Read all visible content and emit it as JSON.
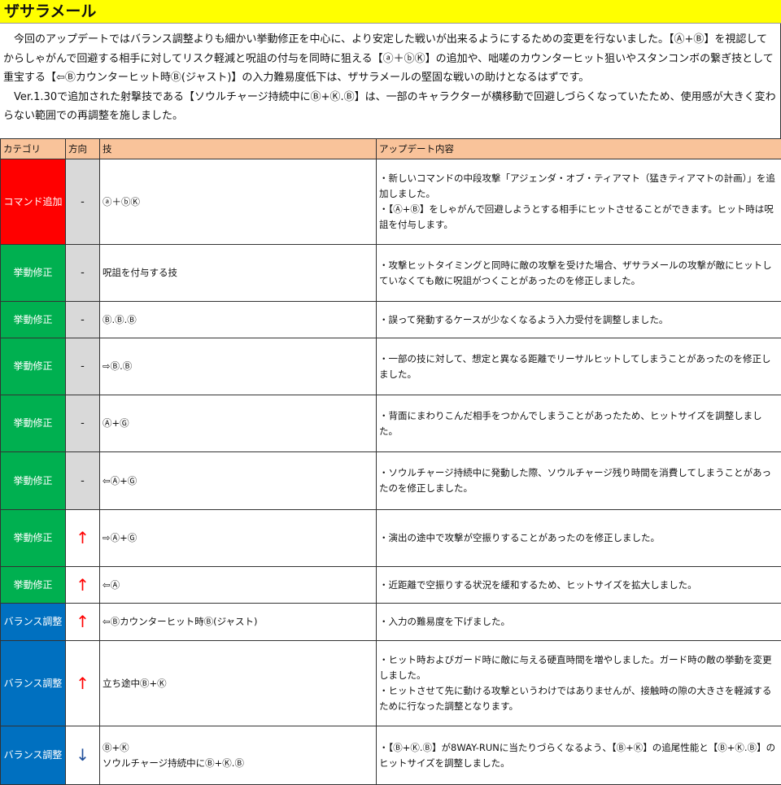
{
  "title": "ザサラメール",
  "intro": [
    "今回のアップデートではバランス調整よりも細かい挙動修正を中心に、より安定した戦いが出来るようにするための変更を行ないました。【Ⓐ+Ⓑ】を視認してからしゃがんで回避する相手に対してリスク軽減と呪詛の付与を同時に狙える【ⓐ＋ⓑⓀ】の追加や、咄嗟のカウンターヒット狙いやスタンコンボの繋ぎ技として重宝する【⇦Ⓑカウンターヒット時Ⓑ(ジャスト)】の入力難易度低下は、ザサラメールの堅固な戦いの助けとなるはずです。",
    "Ver.1.30で追加された射撃技である【ソウルチャージ持続中にⒷ+Ⓚ.Ⓑ】は、一部のキャラクターが横移動で回避しづらくなっていたため、使用感が大きく変わらない範囲での再調整を施しました。"
  ],
  "table": {
    "headers": [
      "カテゴリ",
      "方向",
      "技",
      "アップデート内容"
    ],
    "rows": [
      {
        "category": "コマンド追加",
        "color": "#ff0000",
        "direction": "-",
        "move": [
          "ⓐ＋ⓑⓀ"
        ],
        "details": [
          "・新しいコマンドの中段攻撃「アジェンダ・オブ・ティアマト（猛きティアマトの計画）」を追加しました。",
          "・【Ⓐ+Ⓑ】をしゃがんで回避しようとする相手にヒットさせることができます。ヒット時は呪詛を付与します。"
        ]
      },
      {
        "category": "挙動修正",
        "color": "#00b050",
        "direction": "-",
        "move": [
          "呪詛を付与する技"
        ],
        "details": [
          "・攻撃ヒットタイミングと同時に敵の攻撃を受けた場合、ザサラメールの攻撃が敵にヒットしていなくても敵に呪詛がつくことがあったのを修正しました。"
        ]
      },
      {
        "category": "挙動修正",
        "color": "#00b050",
        "direction": "-",
        "move": [
          "Ⓑ.Ⓑ.Ⓑ"
        ],
        "details": [
          "・誤って発動するケースが少なくなるよう入力受付を調整しました。"
        ]
      },
      {
        "category": "挙動修正",
        "color": "#00b050",
        "direction": "-",
        "move": [
          "⇨Ⓑ.Ⓑ"
        ],
        "details": [
          "・一部の技に対して、想定と異なる距離でリーサルヒットしてしまうことがあったのを修正しました。"
        ]
      },
      {
        "category": "挙動修正",
        "color": "#00b050",
        "direction": "-",
        "move": [
          "Ⓐ+Ⓖ"
        ],
        "details": [
          "・背面にまわりこんだ相手をつかんでしまうことがあったため、ヒットサイズを調整しました。"
        ]
      },
      {
        "category": "挙動修正",
        "color": "#00b050",
        "direction": "-",
        "move": [
          "⇦Ⓐ+Ⓖ"
        ],
        "details": [
          "・ソウルチャージ持続中に発動した際、ソウルチャージ残り時間を消費してしまうことがあったのを修正しました。"
        ]
      },
      {
        "category": "挙動修正",
        "color": "#00b050",
        "direction": "↑",
        "move": [
          "⇨Ⓐ+Ⓖ"
        ],
        "details": [
          "・演出の途中で攻撃が空振りすることがあったのを修正しました。"
        ]
      },
      {
        "category": "挙動修正",
        "color": "#00b050",
        "direction": "↑",
        "move": [
          "⇦Ⓐ"
        ],
        "details": [
          "・近距離で空振りする状況を緩和するため、ヒットサイズを拡大しました。"
        ]
      },
      {
        "category": "バランス調整",
        "color": "#0070c0",
        "direction": "↑",
        "move": [
          "⇦Ⓑカウンターヒット時Ⓑ(ジャスト)"
        ],
        "details": [
          "・入力の難易度を下げました。"
        ]
      },
      {
        "category": "バランス調整",
        "color": "#0070c0",
        "direction": "↑",
        "move": [
          "立ち途中Ⓑ+Ⓚ"
        ],
        "details": [
          "・ヒット時およびガード時に敵に与える硬直時間を増やしました。ガード時の敵の挙動を変更しました。",
          "・ヒットさせて先に動ける攻撃というわけではありませんが、接触時の隙の大きさを軽減するために行なった調整となります。"
        ]
      },
      {
        "category": "バランス調整",
        "color": "#0070c0",
        "direction": "↓",
        "move": [
          "Ⓑ+Ⓚ",
          "ソウルチャージ持続中にⒷ+Ⓚ.Ⓑ"
        ],
        "details": [
          "・【Ⓑ+Ⓚ.Ⓑ】が8WAY-RUNに当たりづらくなるよう、【Ⓑ+Ⓚ】の追尾性能と【Ⓑ+Ⓚ.Ⓑ】のヒットサイズを調整しました。"
        ]
      }
    ]
  }
}
